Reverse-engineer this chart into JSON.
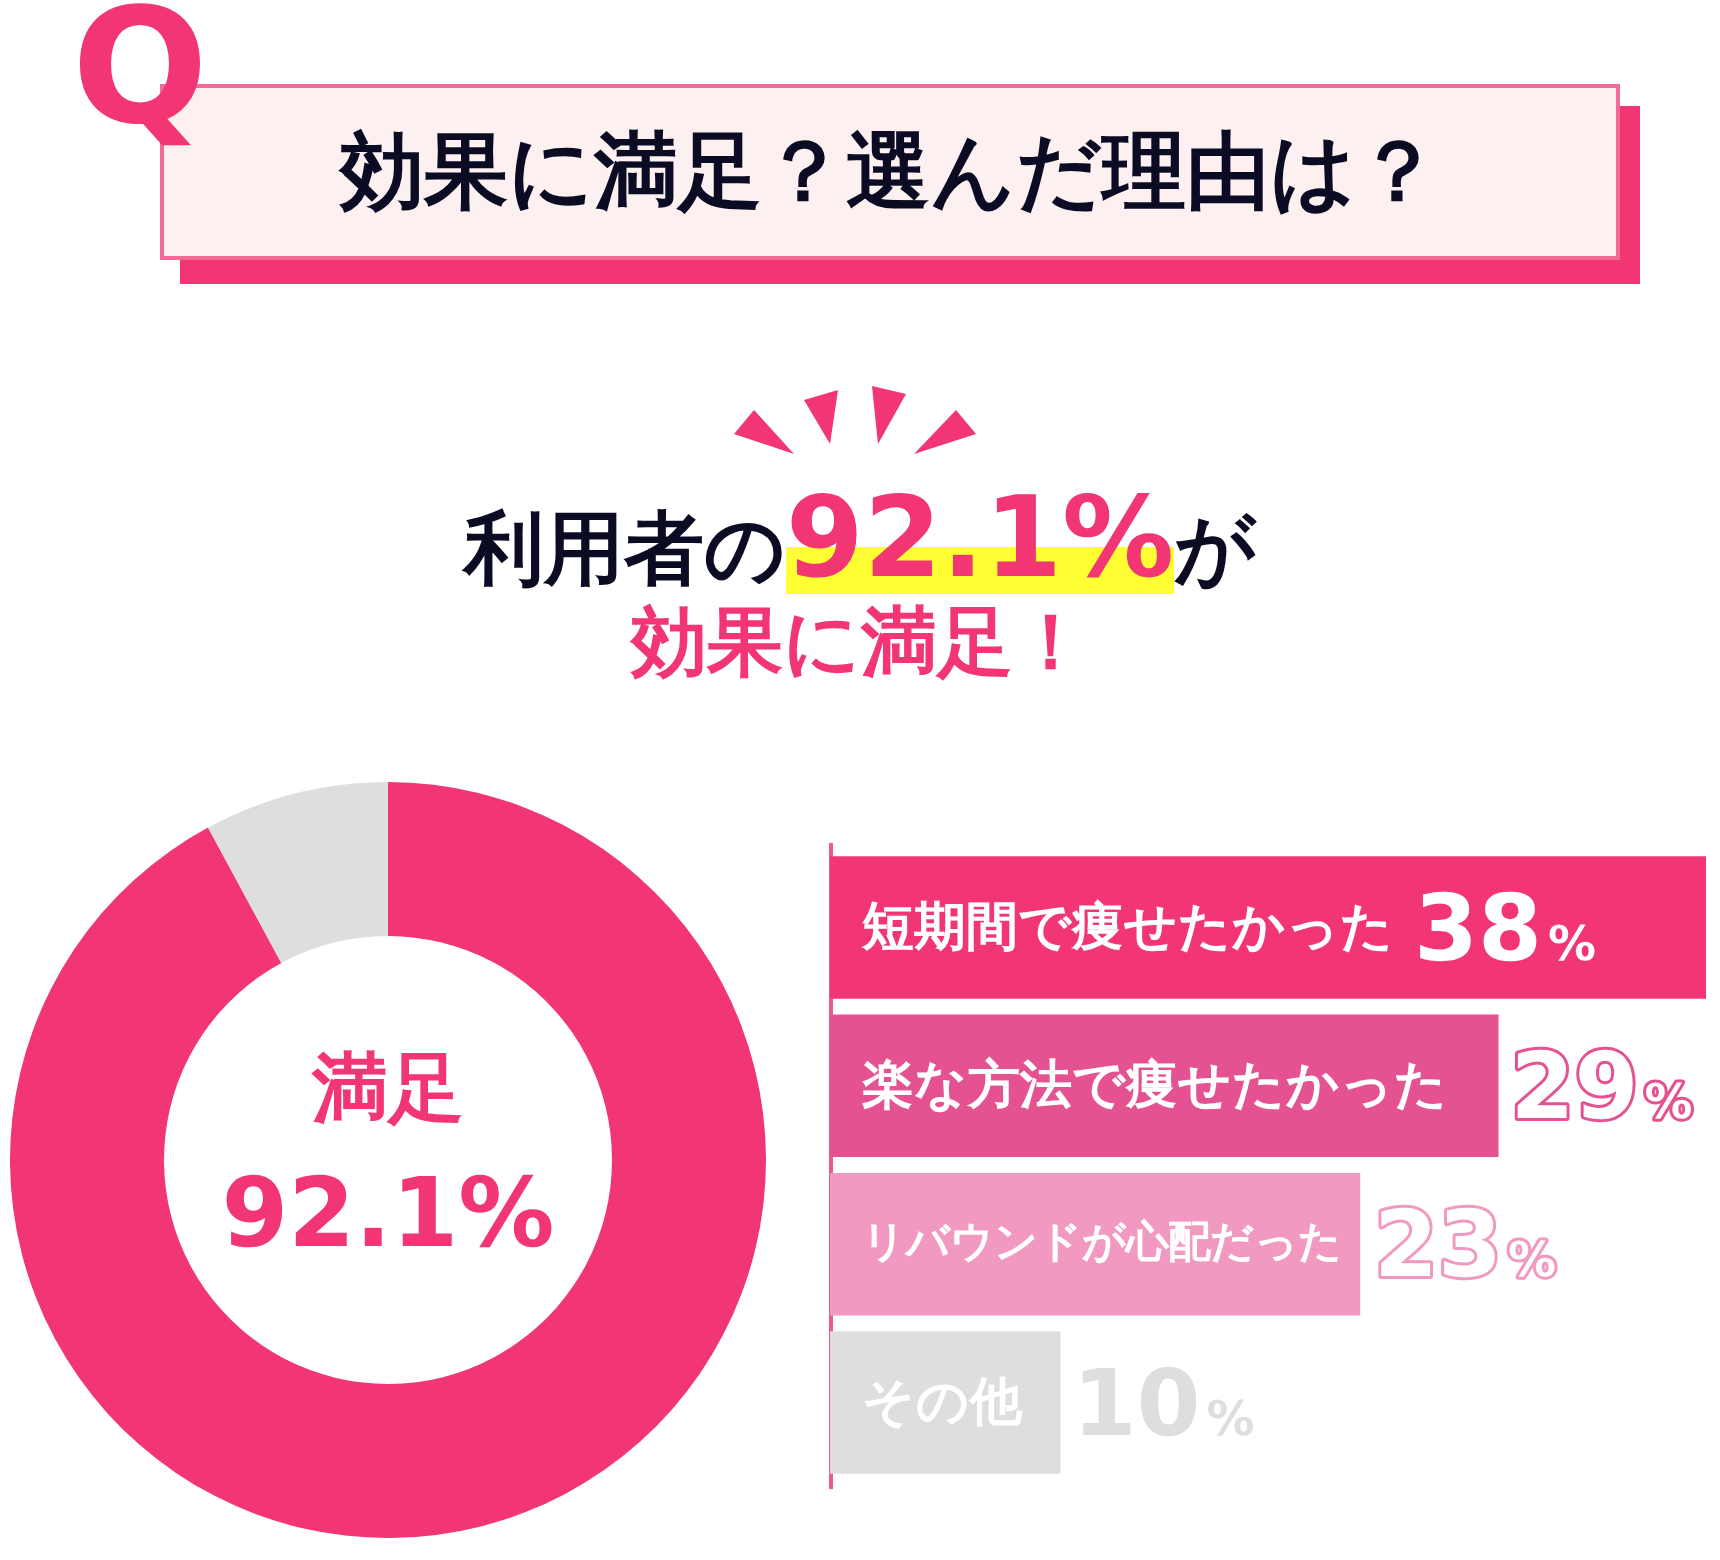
{
  "chart_data": [
    {
      "type": "donut",
      "title": "効果に満足？選んだ理由は？",
      "subtitle": "利用者の92.1%が効果に満足！",
      "annotations": [
        "Q"
      ],
      "categories": [
        "満足",
        null
      ],
      "values": [
        92.1,
        7.9
      ],
      "colors": [
        "#f23573",
        "#dedede"
      ],
      "value_labels": [
        "92.1%",
        null
      ]
    },
    {
      "type": "bar",
      "orientation": "horizontal",
      "categories": [
        "短期間で痩せたかった",
        "楽な方法で痩せたかった",
        "リバウンドが心配だった",
        "その他"
      ],
      "values": [
        38,
        29,
        23,
        10
      ],
      "colors": [
        "#f23573",
        "#e55291",
        "#f199c0",
        "#dedede"
      ],
      "value_labels": [
        "38%",
        "29%",
        "23%",
        "10%"
      ],
      "tick_labels": "y"
    }
  ]
}
